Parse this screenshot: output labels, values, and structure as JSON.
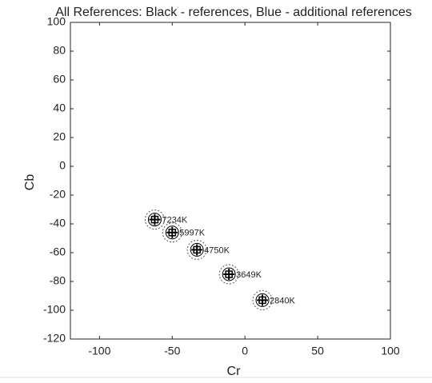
{
  "chart_data": {
    "type": "scatter",
    "title": "All References: Black - references, Blue - additional references",
    "xlabel": "Cr",
    "ylabel": "Cb",
    "x": [
      -62,
      -50,
      -33,
      -11,
      12
    ],
    "y": [
      -37,
      -46,
      -58,
      -75,
      -93
    ],
    "point_labels": [
      "7234K",
      "5997K",
      "4750K",
      "3649K",
      "2840K"
    ],
    "color": "#000000",
    "xlim": [
      -120,
      100
    ],
    "ylim": [
      -120,
      100
    ],
    "xticks": [
      -100,
      -50,
      0,
      50,
      100
    ],
    "yticks": [
      -120,
      -100,
      -80,
      -60,
      -40,
      -20,
      0,
      20,
      40,
      60,
      80,
      100
    ]
  }
}
